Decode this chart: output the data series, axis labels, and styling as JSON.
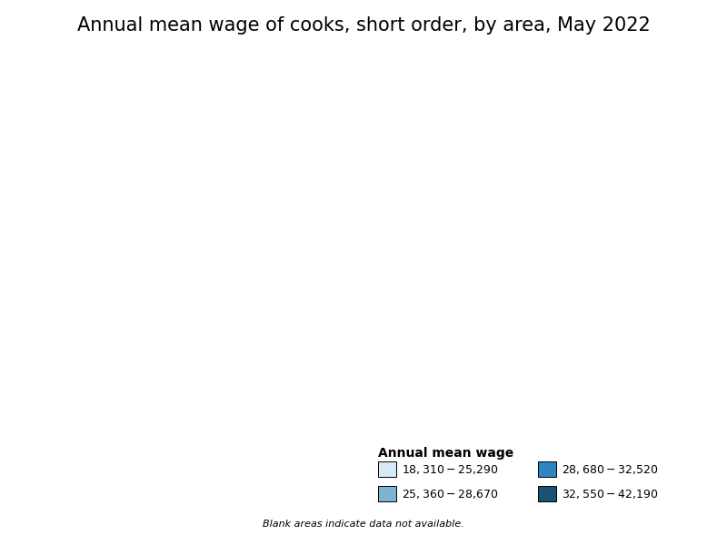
{
  "title": "Annual mean wage of cooks, short order, by area, May 2022",
  "legend_title": "Annual mean wage",
  "legend_entries": [
    {
      "label": "$18,310 - $25,290",
      "color": "#d6eaf8"
    },
    {
      "label": "$28,680 - $32,520",
      "color": "#2e86c1"
    },
    {
      "label": "$25,360 - $28,670",
      "color": "#7fb3d3"
    },
    {
      "label": "$32,550 - $42,190",
      "color": "#1a5276"
    }
  ],
  "blank_note": "Blank areas indicate data not available.",
  "title_fontsize": 15,
  "legend_title_fontsize": 10,
  "legend_fontsize": 9,
  "note_fontsize": 8,
  "background_color": "#ffffff",
  "map_background": "#ffffff",
  "border_color": "#000000",
  "no_data_color": "#ffffff",
  "colors": {
    "tier1": "#d6eaf8",
    "tier2": "#7fb3d3",
    "tier3": "#2e86c1",
    "tier4": "#1a5276"
  },
  "figsize": [
    8.0,
    6.0
  ],
  "dpi": 100
}
